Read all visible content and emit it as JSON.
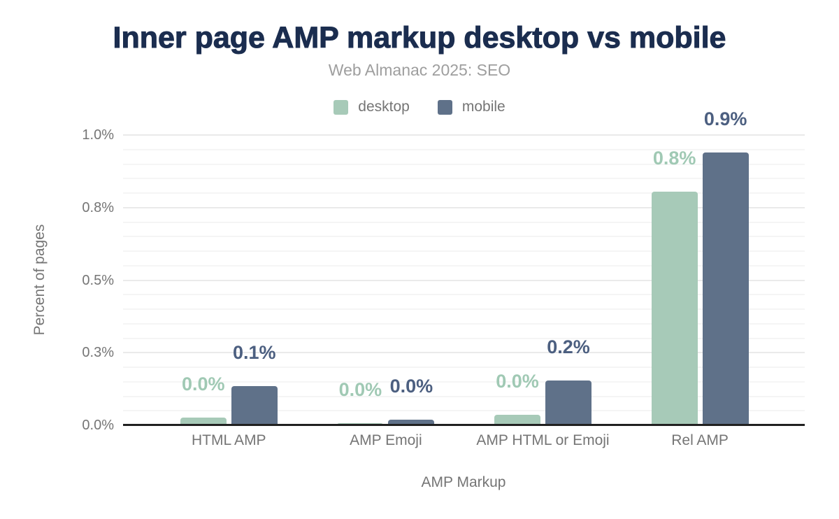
{
  "title": "Inner page AMP markup desktop vs mobile",
  "subtitle": "Web Almanac 2025: SEO",
  "colors": {
    "title": "#1b2d4f",
    "subtitle": "#9e9e9e",
    "axis_text": "#757575",
    "axis_line": "#212121",
    "grid_major": "#eaeaea",
    "grid_minor": "#f5f5f5",
    "desktop": "#a7cab8",
    "mobile": "#5f7189",
    "desktop_label": "#a0c9b4",
    "mobile_label": "#4c5f80"
  },
  "chart_data": {
    "type": "bar",
    "categories": [
      "HTML AMP",
      "AMP Emoji",
      "AMP HTML or Emoji",
      "Rel AMP"
    ],
    "series": [
      {
        "name": "desktop",
        "color": "#a7cab8",
        "label_color": "#a0c9b4",
        "values": [
          0.027,
          0.008,
          0.036,
          0.805
        ],
        "labels": [
          "0.0%",
          "0.0%",
          "0.0%",
          "0.8%"
        ]
      },
      {
        "name": "mobile",
        "color": "#5f7189",
        "label_color": "#4c5f80",
        "values": [
          0.135,
          0.019,
          0.154,
          0.94
        ],
        "labels": [
          "0.1%",
          "0.0%",
          "0.2%",
          "0.9%"
        ]
      }
    ],
    "xlabel": "AMP Markup",
    "ylabel": "Percent of pages",
    "ylim": [
      0,
      1.0
    ],
    "yticks": [
      {
        "value": 0.0,
        "label": "0.0%"
      },
      {
        "value": 0.25,
        "label": "0.3%"
      },
      {
        "value": 0.5,
        "label": "0.5%"
      },
      {
        "value": 0.75,
        "label": "0.8%"
      },
      {
        "value": 1.0,
        "label": "1.0%"
      }
    ],
    "minor_grid_step": 0.05,
    "grid": true,
    "legend_position": "top"
  }
}
